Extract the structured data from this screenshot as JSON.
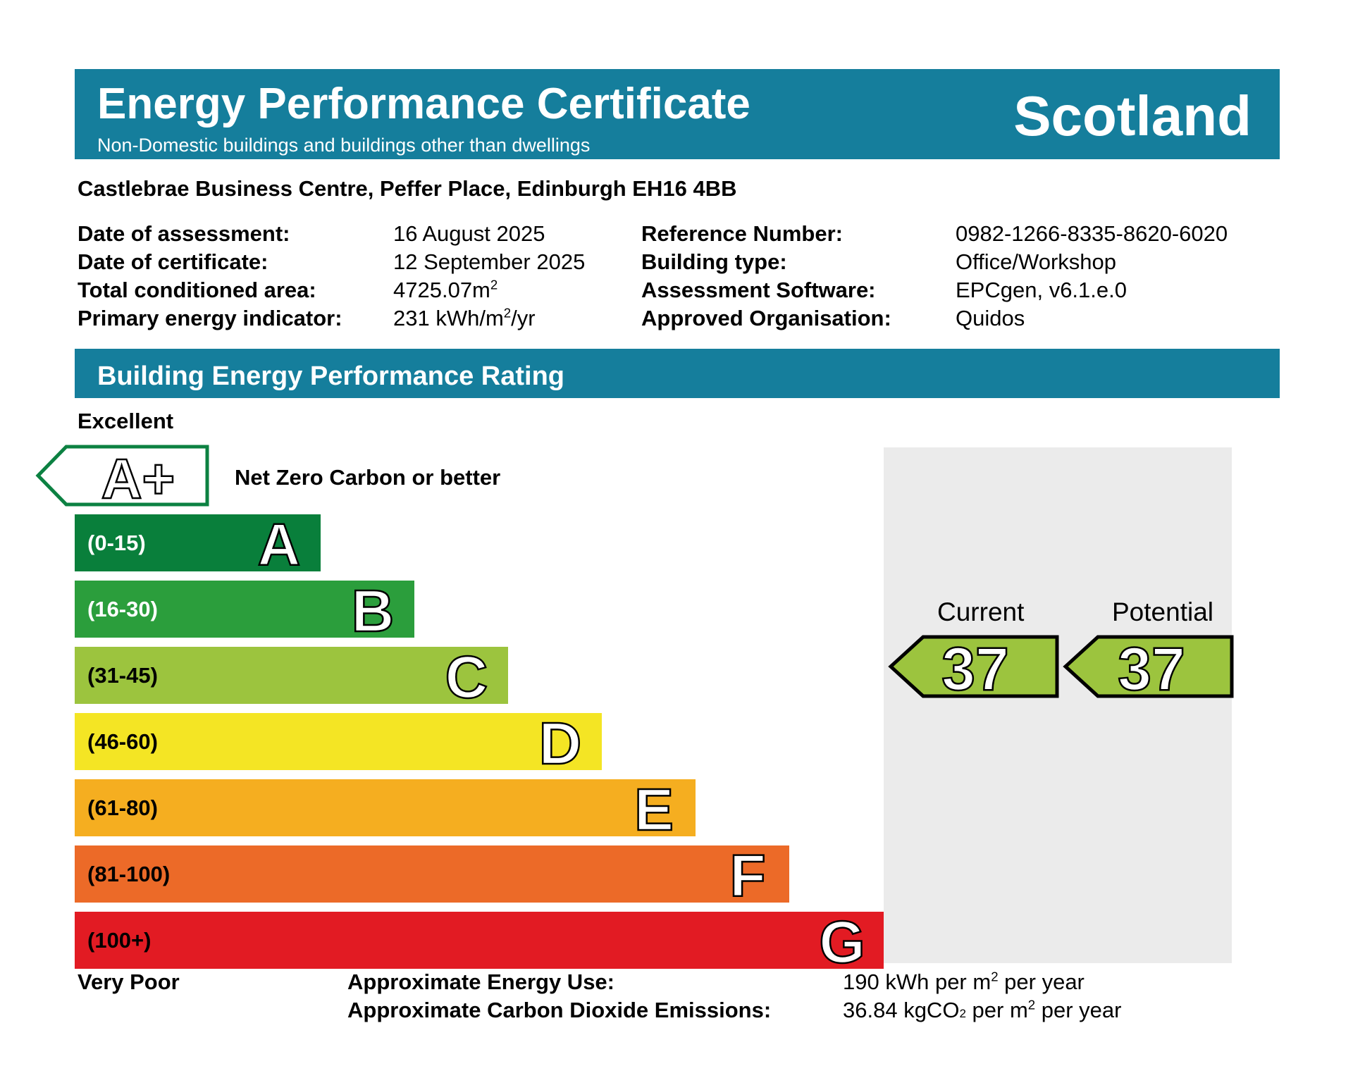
{
  "header": {
    "title": "Energy Performance Certificate",
    "subtitle": "Non-Domestic buildings and buildings other than dwellings",
    "country": "Scotland"
  },
  "address": "Castlebrae Business Centre, Peffer Place, Edinburgh EH16 4BB",
  "details": {
    "date_of_assessment_label": "Date of assessment:",
    "date_of_assessment": "16 August 2025",
    "date_of_certificate_label": "Date of certificate:",
    "date_of_certificate": "12 September 2025",
    "total_area_label": "Total conditioned area:",
    "total_area_value": "4725.07m",
    "total_area_sup": "2",
    "primary_energy_label": "Primary energy indicator:",
    "primary_energy_a": "231 kWh/m",
    "primary_energy_sup": "2",
    "primary_energy_b": "/yr",
    "reference_label": "Reference Number:",
    "reference": "0982-1266-8335-8620-6020",
    "building_type_label": "Building type:",
    "building_type": "Office/Workshop",
    "software_label": "Assessment Software:",
    "software": "EPCgen, v6.1.e.0",
    "organisation_label": "Approved Organisation:",
    "organisation": "Quidos"
  },
  "rating": {
    "title": "Building Energy Performance Rating",
    "top_label": "Excellent",
    "bottom_label": "Very Poor",
    "aplus_letter": "A+",
    "aplus_text": "Net Zero Carbon or better",
    "bands": [
      {
        "letter": "A",
        "range": "(0-15)",
        "color": "#097f3b"
      },
      {
        "letter": "B",
        "range": "(16-30)",
        "color": "#2b9e3c"
      },
      {
        "letter": "C",
        "range": "(31-45)",
        "color": "#9cc43e"
      },
      {
        "letter": "D",
        "range": "(46-60)",
        "color": "#f4e524"
      },
      {
        "letter": "E",
        "range": "(61-80)",
        "color": "#f5ae20"
      },
      {
        "letter": "F",
        "range": "(81-100)",
        "color": "#ec6a28"
      },
      {
        "letter": "G",
        "range": "(100+)",
        "color": "#e21b23"
      }
    ],
    "current_label": "Current",
    "potential_label": "Potential",
    "current_value": "37",
    "potential_value": "37",
    "indicator_color": "#9cc43e"
  },
  "summary": {
    "energy_use_label": "Approximate Energy Use:",
    "energy_use_a": "190 kWh per m",
    "energy_use_sup": "2",
    "energy_use_b": " per year",
    "co2_label": "Approximate Carbon Dioxide Emissions:",
    "co2_a": "36.84 kgCO",
    "co2_sub": "2",
    "co2_b": " per m",
    "co2_sup": "2",
    "co2_c": " per year"
  }
}
